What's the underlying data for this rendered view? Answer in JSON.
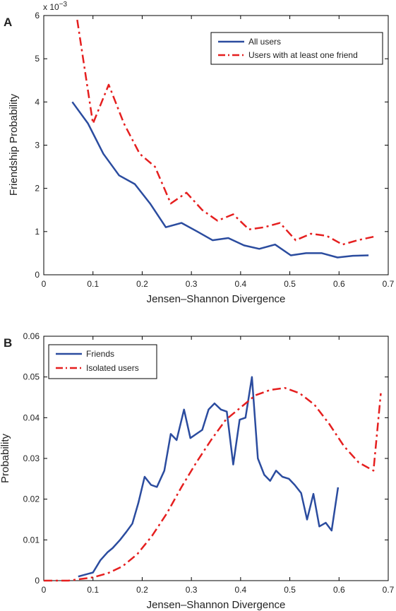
{
  "colors": {
    "series_blue": "#2b4c9f",
    "series_red": "#e51f1f",
    "axis": "#000000"
  },
  "chart_data": [
    {
      "panel": "A",
      "type": "line",
      "xlabel": "Jensen–Shannon Divergence",
      "ylabel": "Friendship Probability",
      "xlim": [
        0,
        0.7
      ],
      "ylim": [
        0,
        0.006
      ],
      "y_multiplier_label": "x 10",
      "y_multiplier_exponent": "−3",
      "x_ticks": [
        0,
        0.1,
        0.2,
        0.3,
        0.4,
        0.5,
        0.6,
        0.7
      ],
      "x_tick_labels": [
        "0",
        "0.1",
        "0.2",
        "0.3",
        "0.4",
        "0.5",
        "0.6",
        "0.7"
      ],
      "y_ticks": [
        0,
        0.001,
        0.002,
        0.003,
        0.004,
        0.005,
        0.006
      ],
      "y_tick_labels": [
        "0",
        "1",
        "2",
        "3",
        "4",
        "5",
        "6"
      ],
      "legend_position": "top-right",
      "series": [
        {
          "name": "All users",
          "color": "#2b4c9f",
          "style": "solid",
          "x": [
            0.058,
            0.09,
            0.121,
            0.153,
            0.185,
            0.216,
            0.248,
            0.28,
            0.312,
            0.343,
            0.375,
            0.407,
            0.438,
            0.47,
            0.502,
            0.533,
            0.565,
            0.597,
            0.628,
            0.66
          ],
          "y": [
            0.004,
            0.0035,
            0.0028,
            0.0023,
            0.0021,
            0.00165,
            0.0011,
            0.0012,
            0.001,
            0.0008,
            0.00085,
            0.00068,
            0.0006,
            0.0007,
            0.00045,
            0.0005,
            0.0005,
            0.0004,
            0.00044,
            0.00045
          ]
        },
        {
          "name": "Users with at least one friend",
          "color": "#e51f1f",
          "style": "dash-dot",
          "x": [
            0.068,
            0.1,
            0.132,
            0.163,
            0.195,
            0.226,
            0.258,
            0.29,
            0.322,
            0.353,
            0.385,
            0.417,
            0.448,
            0.48,
            0.512,
            0.543,
            0.575,
            0.607,
            0.638,
            0.67
          ],
          "y": [
            0.0059,
            0.0035,
            0.0044,
            0.0035,
            0.0028,
            0.0025,
            0.00165,
            0.0019,
            0.0015,
            0.00125,
            0.0014,
            0.00105,
            0.0011,
            0.0012,
            0.0008,
            0.00095,
            0.0009,
            0.0007,
            0.0008,
            0.00088
          ]
        }
      ]
    },
    {
      "panel": "B",
      "type": "line",
      "xlabel": "Jensen–Shannon Divergence",
      "ylabel": "Probability",
      "xlim": [
        0,
        0.7
      ],
      "ylim": [
        0,
        0.06
      ],
      "x_ticks": [
        0,
        0.1,
        0.2,
        0.3,
        0.4,
        0.5,
        0.6,
        0.7
      ],
      "x_tick_labels": [
        "0",
        "0.1",
        "0.2",
        "0.3",
        "0.4",
        "0.5",
        "0.6",
        "0.7"
      ],
      "y_ticks": [
        0,
        0.01,
        0.02,
        0.03,
        0.04,
        0.05,
        0.06
      ],
      "y_tick_labels": [
        "0",
        "0.01",
        "0.02",
        "0.03",
        "0.04",
        "0.05",
        "0.06"
      ],
      "legend_position": "top-left",
      "series": [
        {
          "name": "Friends",
          "color": "#2b4c9f",
          "style": "solid",
          "x": [
            0.07,
            0.1,
            0.115,
            0.13,
            0.14,
            0.155,
            0.168,
            0.18,
            0.192,
            0.205,
            0.218,
            0.23,
            0.245,
            0.258,
            0.27,
            0.285,
            0.298,
            0.31,
            0.322,
            0.335,
            0.347,
            0.36,
            0.372,
            0.385,
            0.398,
            0.41,
            0.423,
            0.435,
            0.448,
            0.46,
            0.472,
            0.485,
            0.498,
            0.51,
            0.523,
            0.535,
            0.548,
            0.56,
            0.573,
            0.585,
            0.598,
            0.61,
            0.623,
            0.635,
            0.648,
            0.66,
            0.673,
            0.685
          ],
          "y": [
            0.001,
            0.002,
            0.005,
            0.007,
            0.008,
            0.01,
            0.012,
            0.014,
            0.019,
            0.0255,
            0.0235,
            0.023,
            0.027,
            0.036,
            0.0345,
            0.042,
            0.035,
            0.036,
            0.037,
            0.042,
            0.0435,
            0.042,
            0.0415,
            0.0285,
            0.0395,
            0.04,
            0.05,
            0.03,
            0.026,
            0.0245,
            0.027,
            0.0255,
            0.025,
            0.0235,
            0.0215,
            0.015,
            0.0213,
            0.0133,
            0.0142,
            0.0123,
            0.0229,
            null,
            null,
            null,
            null,
            null,
            null,
            null
          ]
        },
        {
          "name": "Isolated users",
          "color": "#e51f1f",
          "style": "dash-dot",
          "x": [
            0,
            0.05,
            0.1,
            0.13,
            0.16,
            0.19,
            0.22,
            0.25,
            0.28,
            0.31,
            0.34,
            0.37,
            0.4,
            0.43,
            0.46,
            0.49,
            0.52,
            0.55,
            0.58,
            0.61,
            0.64,
            0.67,
            0.685
          ],
          "y": [
            0,
            0,
            0.0008,
            0.0018,
            0.0035,
            0.0065,
            0.011,
            0.0165,
            0.023,
            0.029,
            0.0345,
            0.0395,
            0.0425,
            0.0455,
            0.0468,
            0.0473,
            0.046,
            0.0432,
            0.0385,
            0.033,
            0.029,
            0.027,
            0.046
          ]
        }
      ]
    }
  ]
}
